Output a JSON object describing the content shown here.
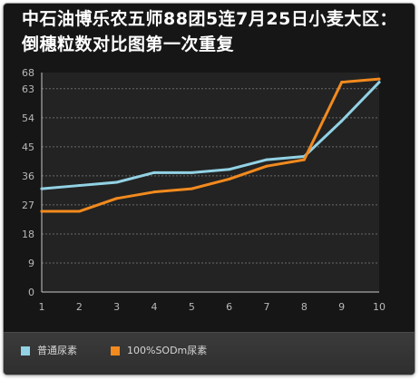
{
  "chart_data": {
    "type": "line",
    "title": "中石油博乐农五师88团5连7月25日小麦大区：倒穗粒数对比图第一次重复",
    "xlabel": "",
    "ylabel": "",
    "x": [
      1,
      2,
      3,
      4,
      5,
      6,
      7,
      8,
      9,
      10
    ],
    "ylim": [
      0,
      68
    ],
    "yticks": [
      0,
      9,
      18,
      27,
      36,
      45,
      54,
      63,
      68
    ],
    "grid": true,
    "legend_position": "bottom",
    "series": [
      {
        "name": "普通尿素",
        "color": "#92d2e4",
        "values": [
          32,
          33,
          34,
          37,
          37,
          38,
          41,
          42,
          53,
          65
        ]
      },
      {
        "name": "100%SODm尿素",
        "color": "#f28a1e",
        "values": [
          25,
          25,
          29,
          31,
          32,
          35,
          39,
          41,
          65,
          66
        ]
      }
    ]
  }
}
